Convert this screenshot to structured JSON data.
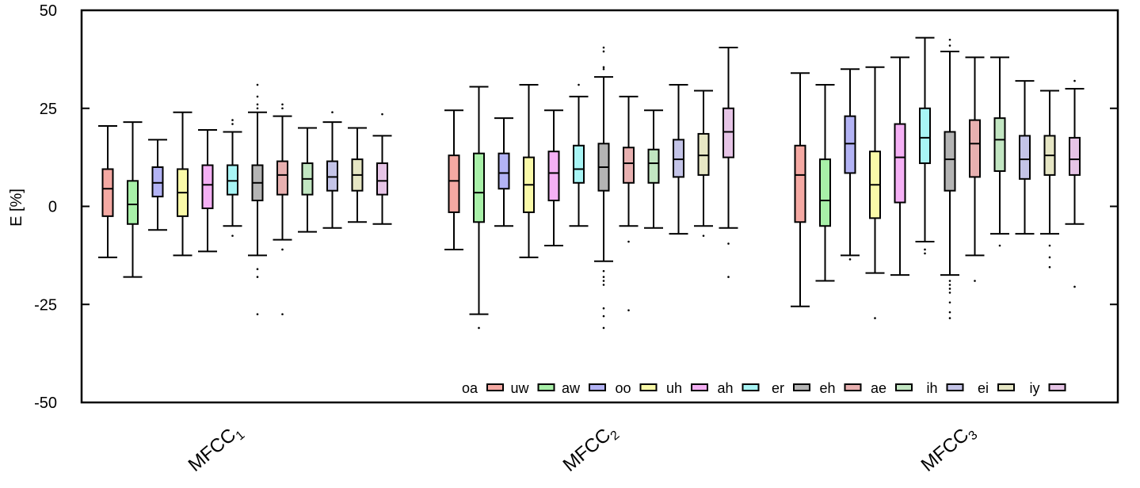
{
  "chart_data": {
    "type": "box",
    "ylabel": "E [%]",
    "ylim": [
      -50,
      50
    ],
    "yticks": [
      -50,
      -25,
      0,
      25,
      50
    ],
    "ytick_labels": [
      "-50",
      "-25",
      "0",
      "25",
      "50"
    ],
    "grid": false,
    "legend_position": "bottom-right",
    "groups": [
      {
        "label": "MFCC",
        "subscript": "1"
      },
      {
        "label": "MFCC",
        "subscript": "2"
      },
      {
        "label": "MFCC",
        "subscript": "3"
      }
    ],
    "series": [
      {
        "name": "oa",
        "color": "#f5a9a3",
        "boxes": [
          {
            "whislo": -13,
            "q1": -2.5,
            "med": 4.5,
            "q3": 9.5,
            "whishi": 20.5,
            "fliers": []
          },
          {
            "whislo": -11,
            "q1": -1.5,
            "med": 6.5,
            "q3": 13,
            "whishi": 24.5,
            "fliers": []
          },
          {
            "whislo": -25.5,
            "q1": -4,
            "med": 8,
            "q3": 15.5,
            "whishi": 34,
            "fliers": []
          }
        ]
      },
      {
        "name": "uw",
        "color": "#a8f0a8",
        "boxes": [
          {
            "whislo": -18,
            "q1": -4.5,
            "med": 0.5,
            "q3": 6.5,
            "whishi": 21.5,
            "fliers": []
          },
          {
            "whislo": -27.5,
            "q1": -4,
            "med": 3.5,
            "q3": 13.5,
            "whishi": 30.5,
            "fliers": [
              -31
            ]
          },
          {
            "whislo": -19,
            "q1": -5,
            "med": 1.5,
            "q3": 12,
            "whishi": 31,
            "fliers": []
          }
        ]
      },
      {
        "name": "aw",
        "color": "#b3b3f5",
        "boxes": [
          {
            "whislo": -6,
            "q1": 2.5,
            "med": 6,
            "q3": 10,
            "whishi": 17,
            "fliers": []
          },
          {
            "whislo": -5,
            "q1": 4.5,
            "med": 8.5,
            "q3": 13.5,
            "whishi": 22.5,
            "fliers": []
          },
          {
            "whislo": -12.5,
            "q1": 8.5,
            "med": 16,
            "q3": 23,
            "whishi": 35,
            "fliers": [
              -13.5
            ]
          }
        ]
      },
      {
        "name": "oo",
        "color": "#fafaa8",
        "boxes": [
          {
            "whislo": -12.5,
            "q1": -2.5,
            "med": 3.5,
            "q3": 9.5,
            "whishi": 24,
            "fliers": []
          },
          {
            "whislo": -13,
            "q1": -1.5,
            "med": 5.5,
            "q3": 12.5,
            "whishi": 31,
            "fliers": []
          },
          {
            "whislo": -17,
            "q1": -3,
            "med": 5.5,
            "q3": 14,
            "whishi": 35.5,
            "fliers": [
              -28.5
            ]
          }
        ]
      },
      {
        "name": "uh",
        "color": "#f5b0f5",
        "boxes": [
          {
            "whislo": -11.5,
            "q1": -0.5,
            "med": 5.5,
            "q3": 10.5,
            "whishi": 19.5,
            "fliers": []
          },
          {
            "whislo": -10,
            "q1": 1.5,
            "med": 8.5,
            "q3": 14,
            "whishi": 24.5,
            "fliers": []
          },
          {
            "whislo": -17.5,
            "q1": 1,
            "med": 12.5,
            "q3": 21,
            "whishi": 38,
            "fliers": []
          }
        ]
      },
      {
        "name": "ah",
        "color": "#a8f5f5",
        "boxes": [
          {
            "whislo": -5,
            "q1": 3,
            "med": 6.5,
            "q3": 10.5,
            "whishi": 19,
            "fliers": [
              -7.5,
              21,
              22
            ]
          },
          {
            "whislo": -5,
            "q1": 6,
            "med": 9.5,
            "q3": 15.5,
            "whishi": 28,
            "fliers": [
              31
            ]
          },
          {
            "whislo": -9,
            "q1": 11,
            "med": 17.5,
            "q3": 25,
            "whishi": 43,
            "fliers": [
              -11,
              -12
            ]
          }
        ]
      },
      {
        "name": "er",
        "color": "#b4b4b4",
        "boxes": [
          {
            "whislo": -12.5,
            "q1": 1.5,
            "med": 6,
            "q3": 10.5,
            "whishi": 24,
            "fliers": [
              -16,
              -18,
              -27.5,
              25,
              26,
              28,
              31
            ]
          },
          {
            "whislo": -14,
            "q1": 4,
            "med": 10,
            "q3": 16,
            "whishi": 33,
            "fliers": [
              -16.5,
              -18,
              -19,
              -20,
              -26,
              -28,
              -31,
              35,
              35.5,
              39.5,
              40.5
            ]
          },
          {
            "whislo": -17.5,
            "q1": 4,
            "med": 12,
            "q3": 19,
            "whishi": 39.5,
            "fliers": [
              -19,
              -20,
              -21,
              -22,
              -24.5,
              -27,
              -28.5,
              41,
              42.5
            ]
          }
        ]
      },
      {
        "name": "eh",
        "color": "#e8b0b0",
        "boxes": [
          {
            "whislo": -8.5,
            "q1": 3,
            "med": 8,
            "q3": 11.5,
            "whishi": 23,
            "fliers": [
              -11,
              -27.5,
              25,
              26
            ]
          },
          {
            "whislo": -5,
            "q1": 6,
            "med": 11,
            "q3": 15,
            "whishi": 28,
            "fliers": [
              -9,
              -26.5
            ]
          },
          {
            "whislo": -12.5,
            "q1": 7.5,
            "med": 16,
            "q3": 22,
            "whishi": 38,
            "fliers": [
              -19
            ]
          }
        ]
      },
      {
        "name": "ae",
        "color": "#c2e6c2",
        "boxes": [
          {
            "whislo": -6.5,
            "q1": 3,
            "med": 7,
            "q3": 11,
            "whishi": 20,
            "fliers": []
          },
          {
            "whislo": -5.5,
            "q1": 6,
            "med": 11,
            "q3": 14.5,
            "whishi": 24.5,
            "fliers": []
          },
          {
            "whislo": -7,
            "q1": 9,
            "med": 17,
            "q3": 22.5,
            "whishi": 38,
            "fliers": [
              -10
            ]
          }
        ]
      },
      {
        "name": "ih",
        "color": "#c4c4e8",
        "boxes": [
          {
            "whislo": -5.5,
            "q1": 4,
            "med": 7.5,
            "q3": 11.5,
            "whishi": 21.5,
            "fliers": [
              24
            ]
          },
          {
            "whislo": -7,
            "q1": 7.5,
            "med": 12,
            "q3": 17,
            "whishi": 31,
            "fliers": []
          },
          {
            "whislo": -7,
            "q1": 7,
            "med": 12,
            "q3": 18,
            "whishi": 32,
            "fliers": []
          }
        ]
      },
      {
        "name": "ei",
        "color": "#e6e6c4",
        "boxes": [
          {
            "whislo": -4,
            "q1": 4,
            "med": 8,
            "q3": 12,
            "whishi": 20,
            "fliers": []
          },
          {
            "whislo": -5,
            "q1": 8,
            "med": 13,
            "q3": 18.5,
            "whishi": 29.5,
            "fliers": [
              -7.5
            ]
          },
          {
            "whislo": -7,
            "q1": 8,
            "med": 13,
            "q3": 18,
            "whishi": 29.5,
            "fliers": [
              -10,
              -13,
              -15.5
            ]
          }
        ]
      },
      {
        "name": "iy",
        "color": "#e6c4e6",
        "boxes": [
          {
            "whislo": -4.5,
            "q1": 3,
            "med": 6.5,
            "q3": 11,
            "whishi": 18,
            "fliers": [
              23.5
            ]
          },
          {
            "whislo": -5.5,
            "q1": 12.5,
            "med": 19,
            "q3": 25,
            "whishi": 40.5,
            "fliers": [
              -9.5,
              -18
            ]
          },
          {
            "whislo": -4.5,
            "q1": 8,
            "med": 12,
            "q3": 17.5,
            "whishi": 30,
            "fliers": [
              -20.5,
              32
            ]
          }
        ]
      }
    ]
  }
}
